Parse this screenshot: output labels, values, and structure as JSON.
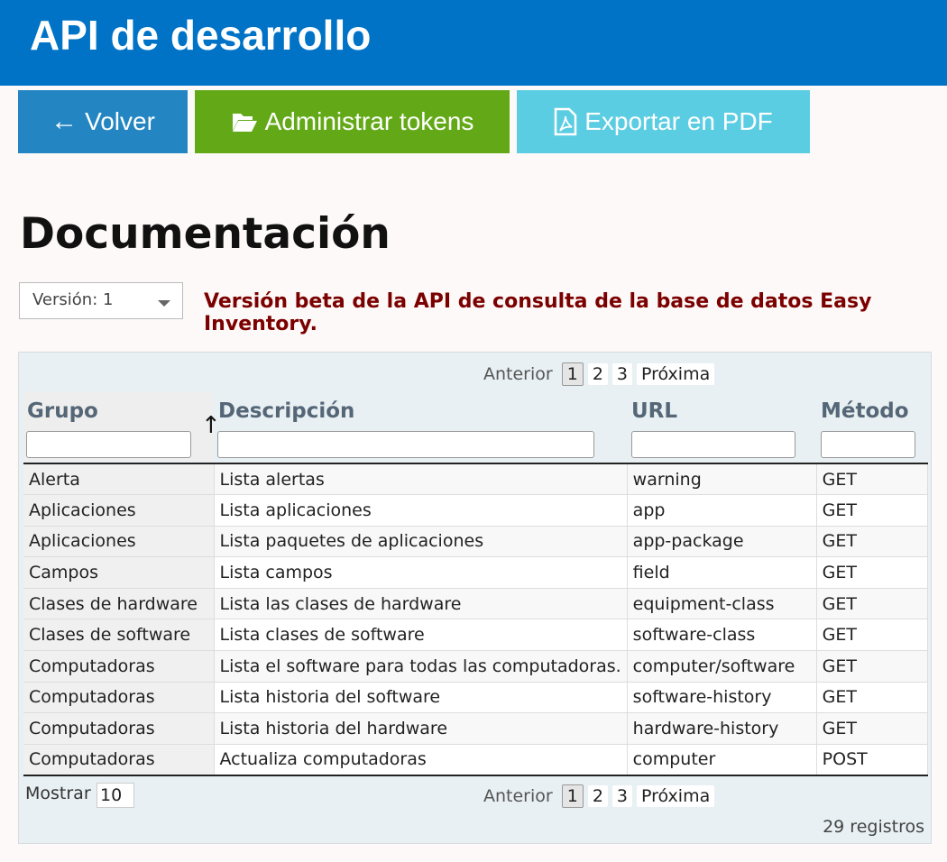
{
  "header": {
    "title": "API de desarrollo"
  },
  "toolbar": {
    "back": "Volver",
    "tokens": "Administrar tokens",
    "pdf": "Exportar en PDF",
    "colors": {
      "back": "#2386c2",
      "tokens": "#63a917",
      "pdf": "#5bcde2"
    }
  },
  "page_title": "Documentación",
  "version": {
    "selected": "Versión: 1"
  },
  "beta_notice": "Versión beta de la API de consulta de la base de datos Easy Inventory.",
  "pager": {
    "prev": "Anterior",
    "pages": [
      "1",
      "2",
      "3"
    ],
    "next": "Próxima",
    "current": "1"
  },
  "columns": [
    "Grupo",
    "Descripción",
    "URL",
    "Método"
  ],
  "sort_indicator": "↑",
  "rows": [
    [
      "Alerta",
      "Lista alertas",
      "warning",
      "GET"
    ],
    [
      "Aplicaciones",
      "Lista aplicaciones",
      "app",
      "GET"
    ],
    [
      "Aplicaciones",
      "Lista paquetes de aplicaciones",
      "app-package",
      "GET"
    ],
    [
      "Campos",
      "Lista campos",
      "field",
      "GET"
    ],
    [
      "Clases de hardware",
      "Lista las clases de hardware",
      "equipment-class",
      "GET"
    ],
    [
      "Clases de software",
      "Lista clases de software",
      "software-class",
      "GET"
    ],
    [
      "Computadoras",
      "Lista el software para todas las computadoras.",
      "computer/software",
      "GET"
    ],
    [
      "Computadoras",
      "Lista historia del software",
      "software-history",
      "GET"
    ],
    [
      "Computadoras",
      "Lista historia del hardware",
      "hardware-history",
      "GET"
    ],
    [
      "Computadoras",
      "Actualiza computadoras",
      "computer",
      "POST"
    ]
  ],
  "footer": {
    "show_label": "Mostrar",
    "show_value": "10",
    "total": "29 registros"
  }
}
